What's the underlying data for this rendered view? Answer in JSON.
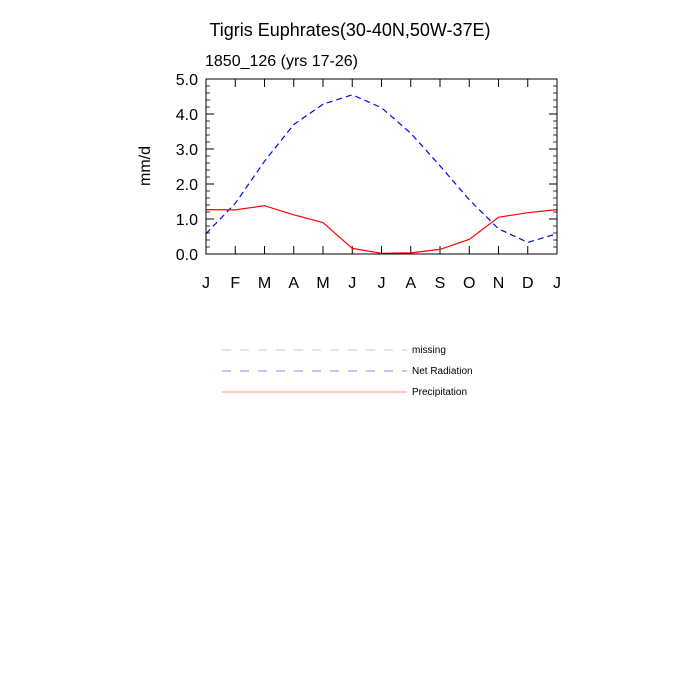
{
  "chart_data": {
    "type": "line",
    "title": "Tigris Euphrates(30-40N,50W-37E)",
    "subtitle": "1850_126 (yrs 17-26)",
    "ylabel": "mm/d",
    "xlabel": "",
    "categories": [
      "J",
      "F",
      "M",
      "A",
      "M",
      "J",
      "J",
      "A",
      "S",
      "O",
      "N",
      "D",
      "J"
    ],
    "ylim": [
      0,
      5
    ],
    "yticks": [
      "0.0",
      "1.0",
      "2.0",
      "3.0",
      "4.0",
      "5.0"
    ],
    "series": [
      {
        "name": "Net Radiation",
        "color": "#0000ff",
        "dash": "dashed",
        "values": [
          0.58,
          1.45,
          2.65,
          3.7,
          4.28,
          4.55,
          4.18,
          3.45,
          2.52,
          1.55,
          0.72,
          0.33,
          0.58
        ]
      },
      {
        "name": "Precipitation",
        "color": "#ff0000",
        "dash": "solid",
        "values": [
          1.27,
          1.26,
          1.38,
          1.12,
          0.9,
          0.16,
          0.02,
          0.03,
          0.13,
          0.42,
          1.05,
          1.18,
          1.27
        ]
      }
    ],
    "legend": {
      "placement": "below",
      "entries": [
        {
          "label": "missing",
          "color": "#888888",
          "dash": "dashed"
        },
        {
          "label": "Net Radiation",
          "color": "#0000ff",
          "dash": "dashed"
        },
        {
          "label": "Precipitation",
          "color": "#ff0000",
          "dash": "solid"
        }
      ]
    }
  }
}
